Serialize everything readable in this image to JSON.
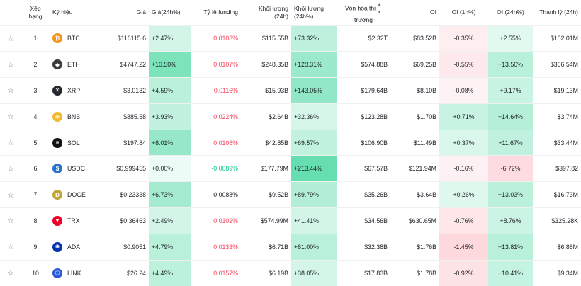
{
  "headers": {
    "rank": "Xếp hạng",
    "symbol": "Ký hiệu",
    "price": "Giá",
    "price_change": "Giá(24h%)",
    "funding": "Tỷ lệ funding",
    "volume": "Khối lượng (24h)",
    "volume_change": "Khối lượng (24h%)",
    "mcap_line1": "Vốn hóa thị",
    "mcap_line2": "trường",
    "oi": "OI",
    "oi_1h": "OI (1h%)",
    "oi_24h": "OI (24h%)",
    "liq": "Thanh lý (24h)"
  },
  "colors": {
    "btc": "#f7931a",
    "eth": "#3c3c3d",
    "xrp": "#23292f",
    "bnb": "#f3ba2f",
    "sol": "#111111",
    "usdc": "#2775ca",
    "doge": "#c2a633",
    "trx": "#ef0027",
    "ada": "#0033ad",
    "link": "#2a5ada"
  },
  "rows": [
    {
      "rank": "1",
      "symbol": "BTC",
      "icon": "btc-icon",
      "price": "$116115.6",
      "pchg": "+2.47%",
      "funding": "0.0103%",
      "vol": "$115.55B",
      "volchg": "+73.32%",
      "mcap": "$2.32T",
      "oi": "$83.52B",
      "oi1h": "-0.35%",
      "oi24h": "+2.55%",
      "liq": "$102.01M"
    },
    {
      "rank": "2",
      "symbol": "ETH",
      "icon": "eth-icon",
      "price": "$4747.22",
      "pchg": "+10.50%",
      "funding": "0.0107%",
      "vol": "$248.35B",
      "volchg": "+128.31%",
      "mcap": "$574.88B",
      "oi": "$69.25B",
      "oi1h": "-0.55%",
      "oi24h": "+13.50%",
      "liq": "$366.54M"
    },
    {
      "rank": "3",
      "symbol": "XRP",
      "icon": "xrp-icon",
      "price": "$3.0132",
      "pchg": "+4.59%",
      "funding": "0.0116%",
      "vol": "$15.93B",
      "volchg": "+143.05%",
      "mcap": "$179.64B",
      "oi": "$8.10B",
      "oi1h": "-0.08%",
      "oi24h": "+9.17%",
      "liq": "$19.13M"
    },
    {
      "rank": "4",
      "symbol": "BNB",
      "icon": "bnb-icon",
      "price": "$885.58",
      "pchg": "+3.93%",
      "funding": "0.0224%",
      "vol": "$2.64B",
      "volchg": "+32.36%",
      "mcap": "$123.28B",
      "oi": "$1.70B",
      "oi1h": "+0.71%",
      "oi24h": "+14.64%",
      "liq": "$3.74M"
    },
    {
      "rank": "5",
      "symbol": "SOL",
      "icon": "sol-icon",
      "price": "$197.84",
      "pchg": "+8.01%",
      "funding": "0.0108%",
      "vol": "$42.85B",
      "volchg": "+69.57%",
      "mcap": "$106.90B",
      "oi": "$11.49B",
      "oi1h": "+0.37%",
      "oi24h": "+11.67%",
      "liq": "$33.44M"
    },
    {
      "rank": "6",
      "symbol": "USDC",
      "icon": "usdc-icon",
      "price": "$0.999455",
      "pchg": "+0.00%",
      "funding": "-0.0089%",
      "vol": "$177.79M",
      "volchg": "+213.44%",
      "mcap": "$67.57B",
      "oi": "$121.94M",
      "oi1h": "-0.16%",
      "oi24h": "-6.72%",
      "liq": "$397.82"
    },
    {
      "rank": "7",
      "symbol": "DOGE",
      "icon": "doge-icon",
      "price": "$0.23338",
      "pchg": "+6.73%",
      "funding": "0.0088%",
      "vol": "$9.52B",
      "volchg": "+89.79%",
      "mcap": "$35.26B",
      "oi": "$3.64B",
      "oi1h": "+0.26%",
      "oi24h": "+13.03%",
      "liq": "$16.73M"
    },
    {
      "rank": "8",
      "symbol": "TRX",
      "icon": "trx-icon",
      "price": "$0.36463",
      "pchg": "+2.49%",
      "funding": "0.0102%",
      "vol": "$574.99M",
      "volchg": "+41.41%",
      "mcap": "$34.56B",
      "oi": "$630.65M",
      "oi1h": "-0.76%",
      "oi24h": "+8.76%",
      "liq": "$325.28K"
    },
    {
      "rank": "9",
      "symbol": "ADA",
      "icon": "ada-icon",
      "price": "$0.9051",
      "pchg": "+4.79%",
      "funding": "0.0133%",
      "vol": "$6.71B",
      "volchg": "+81.00%",
      "mcap": "$32.38B",
      "oi": "$1.76B",
      "oi1h": "-1.45%",
      "oi24h": "+13.81%",
      "liq": "$6.88M"
    },
    {
      "rank": "10",
      "symbol": "LINK",
      "icon": "link-icon",
      "price": "$26.24",
      "pchg": "+4.49%",
      "funding": "0.0157%",
      "vol": "$6.19B",
      "volchg": "+38.05%",
      "mcap": "$17.83B",
      "oi": "$1.78B",
      "oi1h": "-0.92%",
      "oi24h": "+10.41%",
      "liq": "$9.34M"
    }
  ]
}
